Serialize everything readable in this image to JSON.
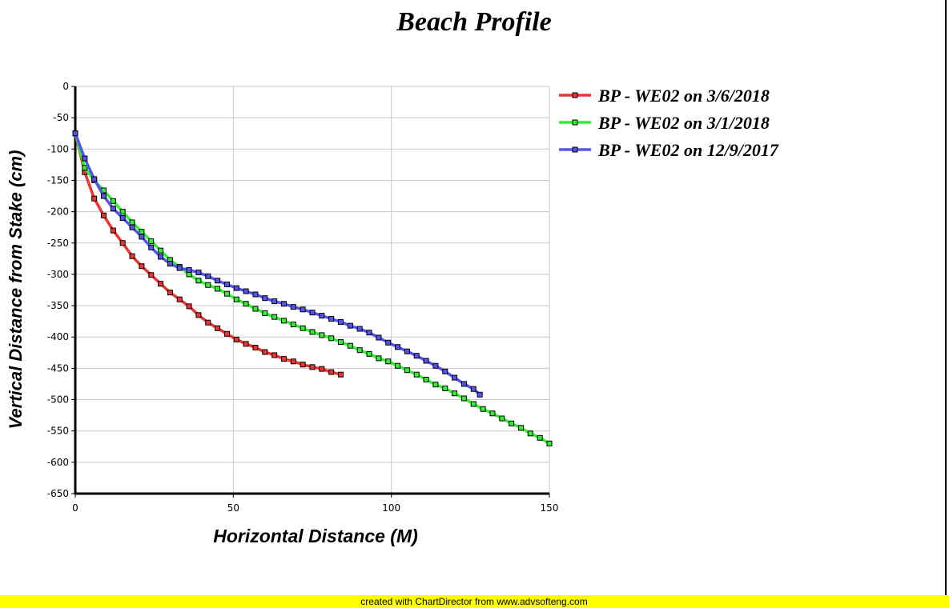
{
  "chart_data": {
    "type": "line",
    "title": "Beach Profile",
    "xlabel": "Horizontal Distance (M)",
    "ylabel": "Vertical Distance from Stake (cm)",
    "xlim": [
      0,
      150
    ],
    "xticks": [
      0,
      50,
      100,
      150
    ],
    "ylim": [
      -650,
      0
    ],
    "yticks": [
      -650,
      -600,
      -550,
      -500,
      -450,
      -400,
      -350,
      -300,
      -250,
      -200,
      -150,
      -100,
      -50,
      0
    ],
    "grid": true,
    "legend": "right",
    "series": [
      {
        "name": "BP - WE02 on 3/6/2018",
        "color": "#ee3333",
        "x": [
          0,
          3,
          6,
          9,
          12,
          15,
          18,
          21,
          24,
          27,
          30,
          33,
          36,
          39,
          42,
          45,
          48,
          51,
          54,
          57,
          60,
          63,
          66,
          69,
          72,
          75,
          78,
          81,
          84
        ],
        "values": [
          -75,
          -137,
          -179,
          -206,
          -230,
          -250,
          -271,
          -287,
          -301,
          -315,
          -329,
          -340,
          -351,
          -365,
          -377,
          -386,
          -395,
          -404,
          -411,
          -417,
          -424,
          -429,
          -435,
          -439,
          -444,
          -448,
          -451,
          -456,
          -460
        ]
      },
      {
        "name": "BP - WE02 on 3/1/2018",
        "color": "#33ee33",
        "x": [
          0,
          3,
          6,
          9,
          12,
          15,
          18,
          21,
          24,
          27,
          30,
          33,
          36,
          39,
          42,
          45,
          48,
          51,
          54,
          57,
          60,
          63,
          66,
          69,
          72,
          75,
          78,
          81,
          84,
          87,
          90,
          93,
          96,
          99,
          102,
          105,
          108,
          111,
          114,
          117,
          120,
          123,
          126,
          129,
          132,
          135,
          138,
          141,
          144,
          147,
          150
        ],
        "values": [
          -75,
          -130,
          -150,
          -166,
          -183,
          -200,
          -217,
          -232,
          -247,
          -262,
          -277,
          -288,
          -300,
          -310,
          -317,
          -323,
          -331,
          -340,
          -347,
          -355,
          -362,
          -368,
          -374,
          -380,
          -386,
          -392,
          -397,
          -402,
          -408,
          -414,
          -421,
          -427,
          -434,
          -439,
          -446,
          -453,
          -460,
          -468,
          -476,
          -482,
          -490,
          -498,
          -507,
          -515,
          -522,
          -530,
          -538,
          -545,
          -554,
          -561,
          -570
        ]
      },
      {
        "name": "BP - WE02 on 12/9/2017",
        "color": "#5555ee",
        "x": [
          0,
          3,
          6,
          9,
          12,
          15,
          18,
          21,
          24,
          27,
          30,
          33,
          36,
          39,
          42,
          45,
          48,
          51,
          54,
          57,
          60,
          63,
          66,
          69,
          72,
          75,
          78,
          81,
          84,
          87,
          90,
          93,
          96,
          99,
          102,
          105,
          108,
          111,
          114,
          117,
          120,
          123,
          126,
          128
        ],
        "values": [
          -75,
          -115,
          -148,
          -175,
          -195,
          -210,
          -225,
          -240,
          -257,
          -272,
          -283,
          -290,
          -293,
          -297,
          -303,
          -310,
          -316,
          -322,
          -327,
          -332,
          -338,
          -343,
          -347,
          -352,
          -356,
          -361,
          -366,
          -371,
          -376,
          -382,
          -387,
          -393,
          -401,
          -409,
          -416,
          -423,
          -430,
          -438,
          -446,
          -455,
          -465,
          -475,
          -483,
          -492
        ]
      }
    ]
  },
  "footer": "created with ChartDirector from www.advsofteng.com"
}
